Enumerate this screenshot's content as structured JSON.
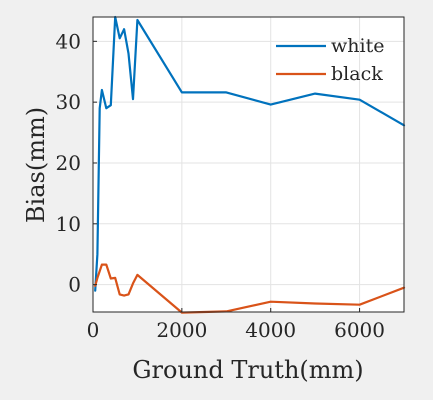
{
  "chart_data": {
    "type": "line",
    "title": "",
    "xlabel": "Ground Truth(mm)",
    "ylabel": "Bias(mm)",
    "xlim": [
      0,
      7000
    ],
    "ylim": [
      -4.5,
      44
    ],
    "xticks": [
      0,
      2000,
      4000,
      6000
    ],
    "xtick_labels": [
      "0",
      "2000",
      "4000",
      "6000"
    ],
    "yticks": [
      0,
      10,
      20,
      30,
      40
    ],
    "ytick_labels": [
      "0",
      "10",
      "20",
      "30",
      "40"
    ],
    "grid": true,
    "legend_position": "top-right",
    "series": [
      {
        "name": "white",
        "color": "#0072BD",
        "x": [
          50,
          100,
          150,
          200,
          300,
          400,
          500,
          600,
          700,
          800,
          900,
          1000,
          2000,
          3000,
          4000,
          5000,
          6000,
          7000
        ],
        "y": [
          -1,
          5,
          29,
          32,
          29,
          29.5,
          44,
          40.5,
          42,
          38,
          30.5,
          43.5,
          31.6,
          31.6,
          29.6,
          31.4,
          30.4,
          26.2
        ]
      },
      {
        "name": "black",
        "color": "#D95319",
        "x": [
          50,
          100,
          200,
          300,
          400,
          500,
          600,
          700,
          800,
          900,
          1000,
          2000,
          3000,
          4000,
          5000,
          6000,
          7000
        ],
        "y": [
          -0.2,
          1.1,
          3.3,
          3.3,
          1.0,
          1.1,
          -1.6,
          -1.8,
          -1.6,
          0.2,
          1.6,
          -4.6,
          -4.4,
          -2.8,
          -3.1,
          -3.3,
          -0.5
        ]
      }
    ]
  }
}
